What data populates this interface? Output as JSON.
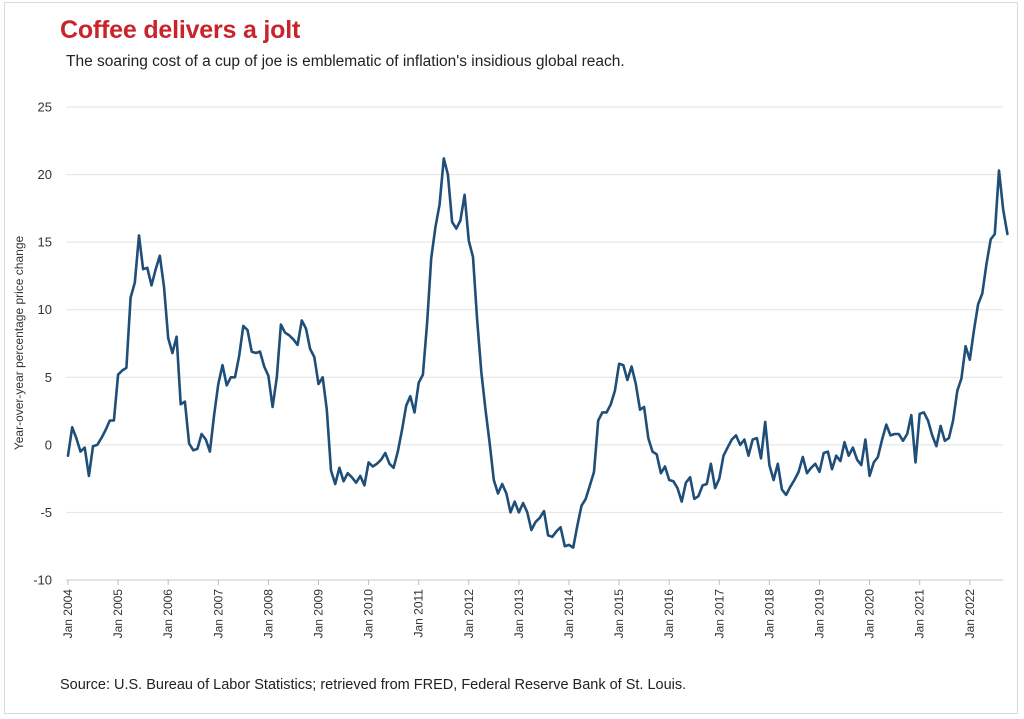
{
  "title": "Coffee delivers a jolt",
  "subtitle": "The soaring cost of a cup of joe is emblematic of inflation's insidious global reach.",
  "source": "Source: U.S. Bureau of Labor Statistics;  retrieved from FRED, Federal Reserve Bank of St. Louis.",
  "colors": {
    "title": "#c8242b",
    "line": "#1f4e79",
    "grid": "#e2e2e2"
  },
  "chart_data": {
    "type": "line",
    "title": "Coffee delivers a jolt",
    "subtitle": "The soaring cost of a cup of joe is emblematic of inflation's insidious global reach.",
    "xlabel": "",
    "ylabel": "Year-over-year percentage price change",
    "ylim": [
      -10,
      25
    ],
    "yticks": [
      -10,
      -5,
      0,
      5,
      10,
      15,
      20,
      25
    ],
    "xticks": [
      "Jan 2004",
      "Jan 2005",
      "Jan 2006",
      "Jan 2007",
      "Jan 2008",
      "Jan 2009",
      "Jan 2010",
      "Jan 2011",
      "Jan 2012",
      "Jan 2013",
      "Jan 2014",
      "Jan 2015",
      "Jan 2016",
      "Jan 2017",
      "Jan 2018",
      "Jan 2019",
      "Jan 2020",
      "Jan 2021",
      "Jan 2022"
    ],
    "grid": "horizontal",
    "legend": "none",
    "x_start": "Jan 2004",
    "x_frequency": "monthly",
    "series": [
      {
        "values": [
          -0.8,
          1.3,
          0.5,
          -0.5,
          -0.2,
          -2.3,
          -0.1,
          0.0,
          0.5,
          1.1,
          1.8,
          1.8,
          5.2,
          5.5,
          5.7,
          10.9,
          12.0,
          15.5,
          13.0,
          13.1,
          11.8,
          13.0,
          14.0,
          11.7,
          7.9,
          6.8,
          8.0,
          3.0,
          3.2,
          0.1,
          -0.4,
          -0.3,
          0.8,
          0.4,
          -0.5,
          2.2,
          4.5,
          5.9,
          4.4,
          5.0,
          5.0,
          6.6,
          8.8,
          8.5,
          6.9,
          6.8,
          6.9,
          5.8,
          5.1,
          2.8,
          5.0,
          8.9,
          8.3,
          8.1,
          7.8,
          7.4,
          9.2,
          8.6,
          7.1,
          6.5,
          4.5,
          5.0,
          2.6,
          -1.9,
          -2.9,
          -1.7,
          -2.7,
          -2.1,
          -2.4,
          -2.8,
          -2.3,
          -3.0,
          -1.3,
          -1.6,
          -1.4,
          -1.1,
          -0.6,
          -1.4,
          -1.7,
          -0.5,
          1.1,
          2.9,
          3.6,
          2.4,
          4.6,
          5.2,
          9.0,
          13.8,
          16.1,
          17.8,
          21.2,
          20.0,
          16.5,
          16.0,
          16.6,
          18.5,
          15.1,
          13.9,
          9.3,
          5.4,
          2.6,
          0.1,
          -2.6,
          -3.6,
          -2.9,
          -3.6,
          -5.0,
          -4.2,
          -5.0,
          -4.3,
          -5.0,
          -6.3,
          -5.7,
          -5.4,
          -4.9,
          -6.7,
          -6.8,
          -6.4,
          -6.1,
          -7.5,
          -7.4,
          -7.6,
          -6.0,
          -4.5,
          -4.0,
          -3.0,
          -2.0,
          1.8,
          2.4,
          2.4,
          3.0,
          4.0,
          6.0,
          5.9,
          4.8,
          5.8,
          4.5,
          2.6,
          2.8,
          0.5,
          -0.5,
          -0.7,
          -2.1,
          -1.6,
          -2.6,
          -2.7,
          -3.2,
          -4.2,
          -2.8,
          -2.4,
          -4.0,
          -3.8,
          -3.0,
          -2.9,
          -1.4,
          -3.2,
          -2.5,
          -0.8,
          -0.2,
          0.4,
          0.7,
          0.0,
          0.4,
          -0.8,
          0.4,
          0.5,
          -1.0,
          1.7,
          -1.5,
          -2.6,
          -1.4,
          -3.3,
          -3.7,
          -3.1,
          -2.6,
          -2.0,
          -0.9,
          -2.1,
          -1.7,
          -1.4,
          -2.0,
          -0.6,
          -0.5,
          -1.8,
          -0.8,
          -1.2,
          0.2,
          -0.8,
          -0.2,
          -1.1,
          -1.5,
          0.4,
          -2.3,
          -1.3,
          -0.9,
          0.4,
          1.5,
          0.7,
          0.8,
          0.8,
          0.3,
          0.8,
          2.2,
          -1.3,
          2.3,
          2.4,
          1.8,
          0.7,
          -0.1,
          1.4,
          0.3,
          0.5,
          1.8,
          4.0,
          4.9,
          7.3,
          6.3,
          8.5,
          10.4,
          11.2,
          13.4,
          15.2,
          15.6,
          20.3,
          17.4,
          15.6
        ]
      }
    ]
  }
}
